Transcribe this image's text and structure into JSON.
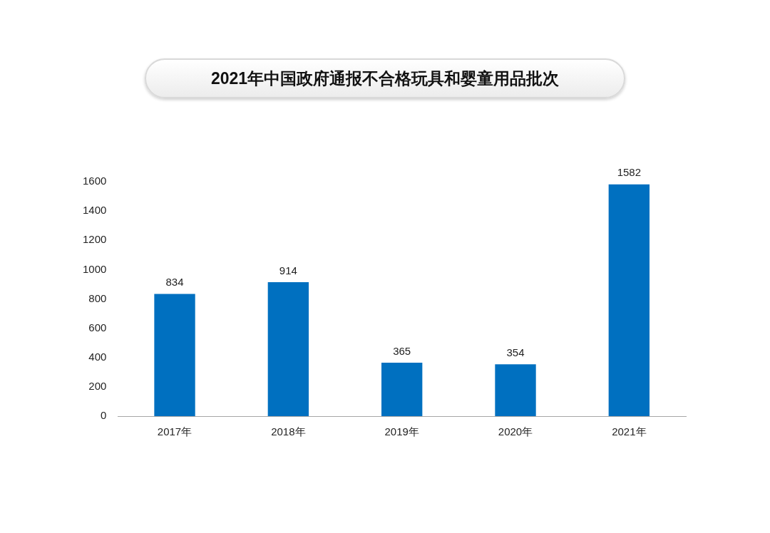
{
  "chart_data": {
    "type": "bar",
    "title": "2021年中国政府通报不合格玩具和婴童用品批次",
    "categories": [
      "2017年",
      "2018年",
      "2019年",
      "2020年",
      "2021年"
    ],
    "values": [
      834,
      914,
      365,
      354,
      1582
    ],
    "color": "#0070c0",
    "ylim": [
      0,
      1600
    ],
    "yticks": [
      0,
      200,
      400,
      600,
      800,
      1000,
      1200,
      1400,
      1600
    ],
    "grid": false,
    "legend": false,
    "data_labels": true
  }
}
